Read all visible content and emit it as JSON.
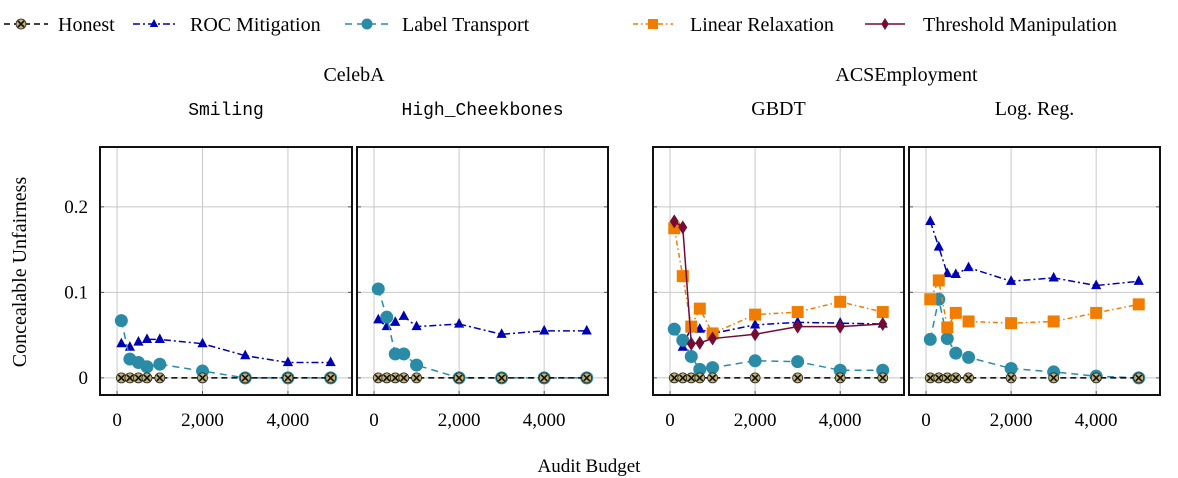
{
  "chart_data": {
    "type": "line",
    "ylabel": "Concealable Unfairness",
    "xlabel": "Audit Budget",
    "legend_position": "top",
    "grid": true,
    "x": [
      100,
      300,
      500,
      700,
      1000,
      2000,
      3000,
      4000,
      5000
    ],
    "xlim": [
      -400,
      5500
    ],
    "ylim": [
      -0.02,
      0.27
    ],
    "xticks": [
      0,
      2000,
      4000
    ],
    "xtick_labels": [
      "0",
      "2,000",
      "4,000"
    ],
    "yticks": [
      0,
      0.1,
      0.2
    ],
    "ytick_labels": [
      "0",
      "0.1",
      "0.2"
    ],
    "series_styles": [
      {
        "name": "Honest",
        "color": "#c4b16e",
        "line_color": "#000000",
        "dash": "6,4",
        "marker": "circle-x"
      },
      {
        "name": "ROC Mitigation",
        "color": "#0000b4",
        "dash": "7,3,2,3",
        "marker": "triangle"
      },
      {
        "name": "Label Transport",
        "color": "#2a8ba6",
        "dash": "7,5",
        "marker": "circle"
      },
      {
        "name": "Linear Relaxation",
        "color": "#f07d00",
        "dash": "5,3,1.5,3",
        "marker": "square"
      },
      {
        "name": "Threshold Manipulation",
        "color": "#730b33",
        "dash": "",
        "marker": "diamond"
      }
    ],
    "groups": [
      {
        "title": "CelebA",
        "panels": [
          0,
          1
        ]
      },
      {
        "title": "ACSEmployment",
        "panels": [
          2,
          3
        ]
      }
    ],
    "panels": [
      {
        "subtitle": "Smiling",
        "subtitle_style": "mono",
        "series": [
          {
            "name": "Honest",
            "values": [
              0,
              0,
              0,
              0,
              0,
              0,
              0,
              0,
              0
            ]
          },
          {
            "name": "ROC Mitigation",
            "values": [
              0.04,
              0.036,
              0.042,
              0.045,
              0.045,
              0.04,
              0.026,
              0.018,
              0.018
            ]
          },
          {
            "name": "Label Transport",
            "values": [
              0.067,
              0.022,
              0.018,
              0.013,
              0.016,
              0.008,
              0,
              0,
              0
            ]
          }
        ]
      },
      {
        "subtitle": "High_Cheekbones",
        "subtitle_style": "mono",
        "series": [
          {
            "name": "Honest",
            "values": [
              0,
              0,
              0,
              0,
              0,
              0,
              0,
              0,
              0
            ]
          },
          {
            "name": "ROC Mitigation",
            "values": [
              0.068,
              0.06,
              0.065,
              0.072,
              0.06,
              0.063,
              0.051,
              0.055,
              0.055
            ]
          },
          {
            "name": "Label Transport",
            "values": [
              0.104,
              0.071,
              0.028,
              0.028,
              0.015,
              0,
              0,
              0,
              0
            ]
          }
        ]
      },
      {
        "subtitle": "GBDT",
        "subtitle_style": "serif",
        "series": [
          {
            "name": "Honest",
            "values": [
              0,
              0,
              0,
              0,
              0,
              0,
              0,
              0,
              0
            ]
          },
          {
            "name": "ROC Mitigation",
            "values": [
              0.057,
              0.036,
              0.06,
              0.057,
              0.052,
              0.062,
              0.065,
              0.064,
              0.063
            ]
          },
          {
            "name": "Label Transport",
            "values": [
              0.057,
              0.044,
              0.025,
              0.01,
              0.012,
              0.02,
              0.019,
              0.009,
              0.009
            ]
          },
          {
            "name": "Linear Relaxation",
            "values": [
              0.175,
              0.119,
              0.06,
              0.081,
              0.052,
              0.074,
              0.077,
              0.089,
              0.077
            ]
          },
          {
            "name": "Threshold Manipulation",
            "values": [
              0.183,
              0.176,
              0.04,
              0.041,
              0.046,
              0.051,
              0.06,
              0.06,
              0.063
            ]
          }
        ]
      },
      {
        "subtitle": "Log. Reg.",
        "subtitle_style": "serif",
        "series": [
          {
            "name": "Honest",
            "values": [
              0,
              0,
              0,
              0,
              0,
              0,
              0,
              0,
              0
            ]
          },
          {
            "name": "ROC Mitigation",
            "values": [
              0.183,
              0.153,
              0.122,
              0.121,
              0.129,
              0.113,
              0.117,
              0.108,
              0.113
            ]
          },
          {
            "name": "Label Transport",
            "values": [
              0.045,
              0.092,
              0.046,
              0.029,
              0.024,
              0.011,
              0.007,
              0.002,
              0
            ]
          },
          {
            "name": "Linear Relaxation",
            "values": [
              0.092,
              0.114,
              0.059,
              0.076,
              0.066,
              0.064,
              0.066,
              0.076,
              0.086
            ]
          }
        ]
      }
    ]
  }
}
